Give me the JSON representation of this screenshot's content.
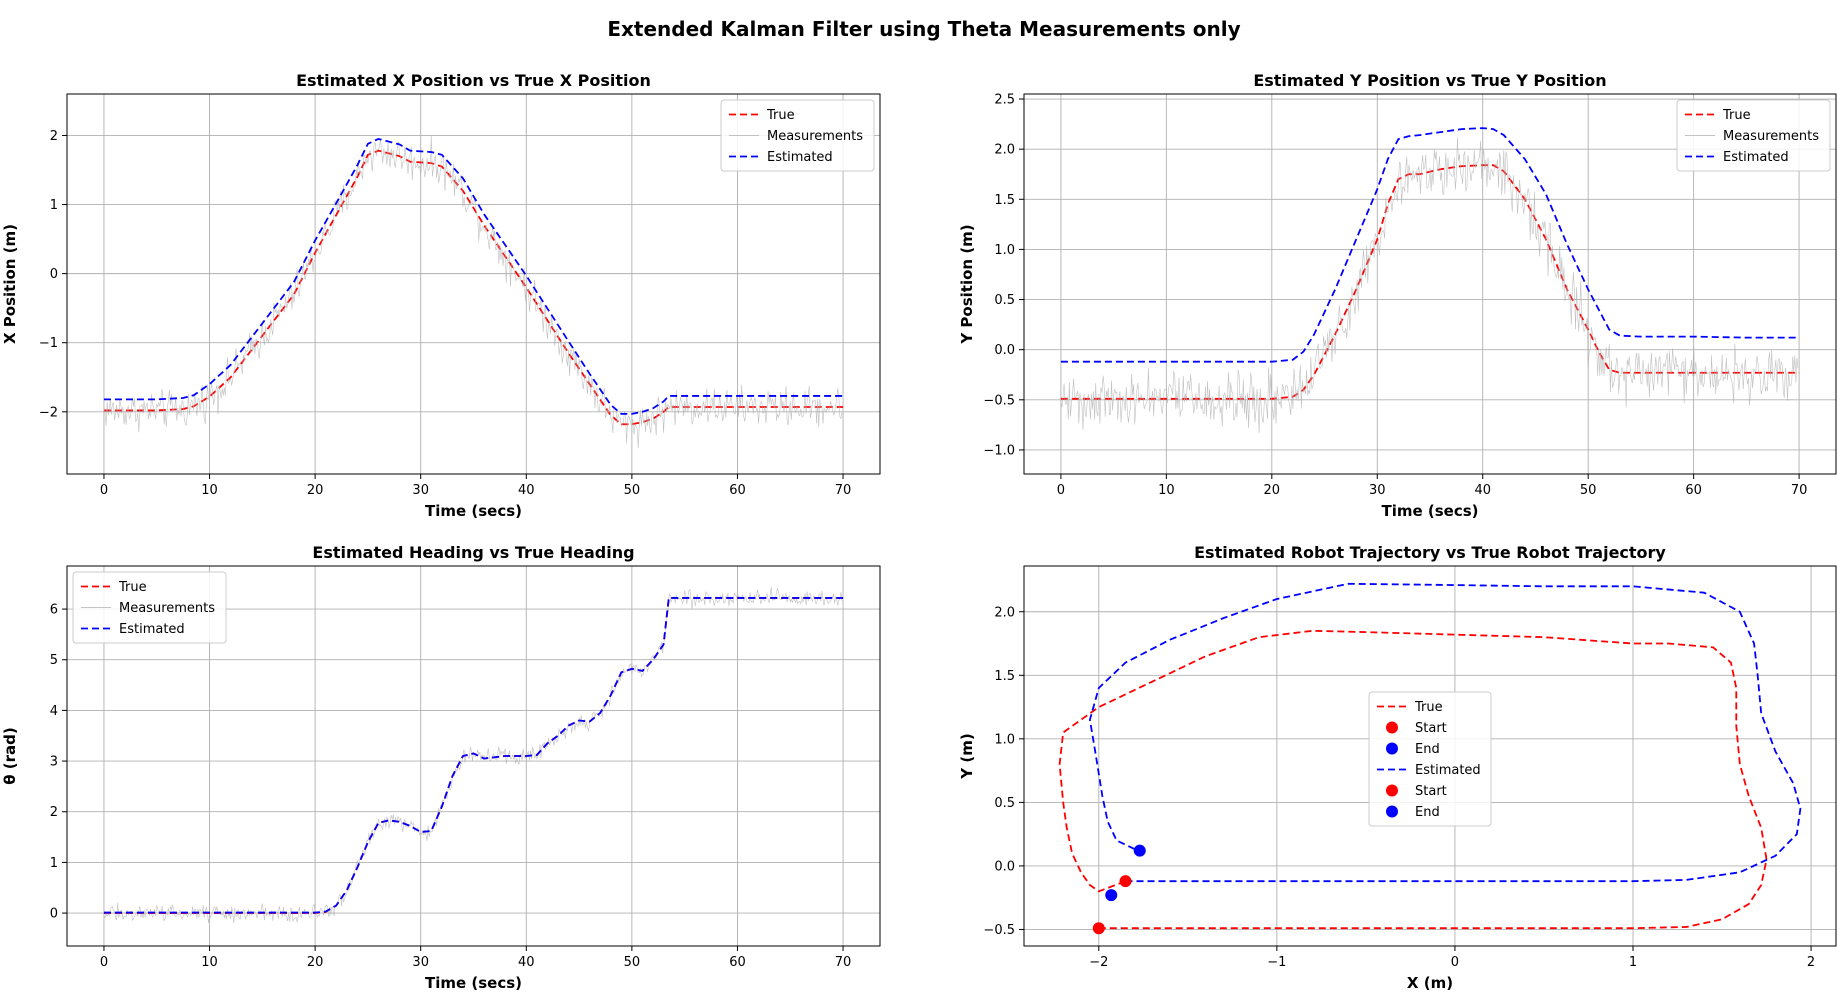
{
  "figure_title": "Extended Kalman Filter using Theta Measurements only",
  "colors": {
    "true": "#ff0000",
    "estimated": "#0000ff",
    "measurements": "#b0b0b0",
    "grid": "#b0b0b0"
  },
  "chart_data": [
    {
      "id": "x",
      "type": "line",
      "title": "Estimated X Position vs True X Position",
      "xlabel": "Time (secs)",
      "ylabel": "X Position (m)",
      "xlim": [
        -3.5,
        73.5
      ],
      "ylim": [
        -2.9,
        2.6
      ],
      "xticks": [
        0,
        10,
        20,
        30,
        40,
        50,
        60,
        70
      ],
      "yticks": [
        -2,
        -1,
        0,
        1,
        2
      ],
      "ytick_labels": [
        "−2",
        "−1",
        "0",
        "1",
        "2"
      ],
      "grid": true,
      "legend": {
        "position": "top-right",
        "labels": [
          "True",
          "Measurements",
          "Estimated"
        ]
      },
      "measurement_noise": 0.17,
      "series": [
        {
          "name": "True",
          "style": "dashed",
          "x": [
            0,
            5,
            7.5,
            8.5,
            10,
            12,
            15,
            18,
            20,
            22,
            24,
            25,
            26,
            28,
            29,
            31,
            32,
            34,
            36,
            40,
            44,
            46,
            48,
            49,
            50,
            51,
            52,
            53,
            53.5,
            56,
            60,
            65,
            70
          ],
          "y": [
            -1.98,
            -1.98,
            -1.96,
            -1.92,
            -1.78,
            -1.5,
            -0.9,
            -0.3,
            0.3,
            0.85,
            1.4,
            1.72,
            1.78,
            1.7,
            1.62,
            1.6,
            1.55,
            1.2,
            0.7,
            -0.2,
            -1.15,
            -1.6,
            -2.05,
            -2.18,
            -2.18,
            -2.15,
            -2.1,
            -2.0,
            -1.93,
            -1.93,
            -1.93,
            -1.93,
            -1.93
          ]
        },
        {
          "name": "Measurements",
          "style": "solid",
          "x": [
            0,
            5,
            7.5,
            8.5,
            10,
            12,
            15,
            18,
            20,
            22,
            24,
            25,
            26,
            28,
            29,
            31,
            32,
            34,
            36,
            40,
            44,
            46,
            48,
            49,
            50,
            51,
            52,
            53,
            53.5,
            56,
            60,
            65,
            70
          ],
          "y": [
            -1.98,
            -1.98,
            -1.96,
            -1.92,
            -1.78,
            -1.5,
            -0.9,
            -0.3,
            0.3,
            0.85,
            1.4,
            1.72,
            1.78,
            1.7,
            1.62,
            1.6,
            1.55,
            1.2,
            0.7,
            -0.2,
            -1.15,
            -1.6,
            -2.05,
            -2.18,
            -2.18,
            -2.15,
            -2.1,
            -2.0,
            -1.93,
            -1.93,
            -1.93,
            -1.93,
            -1.93
          ]
        },
        {
          "name": "Estimated",
          "style": "dashed",
          "x": [
            0,
            5,
            7.5,
            8.5,
            10,
            12,
            15,
            18,
            20,
            22,
            24,
            25,
            26,
            28,
            29,
            31,
            32,
            34,
            36,
            40,
            44,
            46,
            48,
            49,
            50,
            51,
            52,
            53,
            53.5,
            56,
            60,
            65,
            70
          ],
          "y": [
            -1.82,
            -1.82,
            -1.8,
            -1.76,
            -1.6,
            -1.32,
            -0.72,
            -0.12,
            0.48,
            1.02,
            1.57,
            1.88,
            1.95,
            1.87,
            1.78,
            1.76,
            1.72,
            1.38,
            0.86,
            -0.03,
            -0.98,
            -1.45,
            -1.9,
            -2.03,
            -2.03,
            -2.0,
            -1.95,
            -1.85,
            -1.77,
            -1.77,
            -1.77,
            -1.77,
            -1.77
          ]
        }
      ]
    },
    {
      "id": "y",
      "type": "line",
      "title": "Estimated Y Position vs True Y Position",
      "xlabel": "Time (secs)",
      "ylabel": "Y Position (m)",
      "xlim": [
        -3.5,
        73.5
      ],
      "ylim": [
        -1.24,
        2.55
      ],
      "xticks": [
        0,
        10,
        20,
        30,
        40,
        50,
        60,
        70
      ],
      "yticks": [
        -1.0,
        -0.5,
        0.0,
        0.5,
        1.0,
        1.5,
        2.0,
        2.5
      ],
      "ytick_labels": [
        "−1.0",
        "−0.5",
        "0.0",
        "0.5",
        "1.0",
        "1.5",
        "2.0",
        "2.5"
      ],
      "grid": true,
      "legend": {
        "position": "top-right",
        "labels": [
          "True",
          "Measurements",
          "Estimated"
        ]
      },
      "measurement_noise": 0.17,
      "series": [
        {
          "name": "True",
          "style": "dashed",
          "x": [
            0,
            10,
            20,
            22,
            23,
            24,
            26,
            28,
            30,
            31,
            32,
            33,
            34,
            36,
            38,
            40,
            41,
            42,
            44,
            46,
            48,
            50,
            51,
            52,
            53,
            55,
            60,
            65,
            70
          ],
          "y": [
            -0.49,
            -0.49,
            -0.49,
            -0.47,
            -0.4,
            -0.25,
            0.15,
            0.6,
            1.1,
            1.45,
            1.7,
            1.75,
            1.75,
            1.8,
            1.83,
            1.84,
            1.84,
            1.78,
            1.5,
            1.1,
            0.6,
            0.2,
            -0.02,
            -0.2,
            -0.23,
            -0.23,
            -0.23,
            -0.23,
            -0.23
          ]
        },
        {
          "name": "Measurements",
          "style": "solid",
          "x": [
            0,
            10,
            20,
            22,
            23,
            24,
            26,
            28,
            30,
            31,
            32,
            33,
            34,
            36,
            38,
            40,
            41,
            42,
            44,
            46,
            48,
            50,
            51,
            52,
            53,
            55,
            60,
            65,
            70
          ],
          "y": [
            -0.49,
            -0.49,
            -0.49,
            -0.47,
            -0.4,
            -0.25,
            0.15,
            0.6,
            1.1,
            1.45,
            1.7,
            1.75,
            1.75,
            1.8,
            1.83,
            1.84,
            1.84,
            1.78,
            1.5,
            1.1,
            0.6,
            0.2,
            -0.02,
            -0.2,
            -0.23,
            -0.23,
            -0.23,
            -0.23,
            -0.23
          ]
        },
        {
          "name": "Estimated",
          "style": "dashed",
          "x": [
            0,
            10,
            20,
            22,
            23,
            24,
            26,
            28,
            30,
            31,
            32,
            33,
            34,
            36,
            38,
            40,
            41,
            42,
            44,
            46,
            48,
            50,
            51,
            52,
            53,
            55,
            60,
            65,
            70
          ],
          "y": [
            -0.12,
            -0.12,
            -0.12,
            -0.1,
            -0.02,
            0.15,
            0.6,
            1.1,
            1.6,
            1.9,
            2.1,
            2.13,
            2.14,
            2.17,
            2.2,
            2.21,
            2.2,
            2.14,
            1.9,
            1.55,
            1.05,
            0.6,
            0.4,
            0.2,
            0.14,
            0.13,
            0.13,
            0.12,
            0.12
          ]
        }
      ]
    },
    {
      "id": "theta",
      "type": "line",
      "title": "Estimated Heading vs True Heading",
      "xlabel": "Time (secs)",
      "ylabel": "θ (rad)",
      "xlim": [
        -3.5,
        73.5
      ],
      "ylim": [
        -0.65,
        6.85
      ],
      "xticks": [
        0,
        10,
        20,
        30,
        40,
        50,
        60,
        70
      ],
      "yticks": [
        0,
        1,
        2,
        3,
        4,
        5,
        6
      ],
      "ytick_labels": [
        "0",
        "1",
        "2",
        "3",
        "4",
        "5",
        "6"
      ],
      "grid": true,
      "legend": {
        "position": "top-left",
        "labels": [
          "True",
          "Measurements",
          "Estimated"
        ]
      },
      "measurement_noise": 0.1,
      "series": [
        {
          "name": "True",
          "style": "dashed",
          "x": [
            0,
            10,
            20,
            21,
            22,
            23,
            24,
            25,
            26,
            27,
            28,
            29,
            30,
            31,
            32,
            33,
            34,
            35,
            36,
            38,
            40,
            41,
            42,
            43,
            44,
            45,
            46,
            47,
            48,
            49,
            50,
            51,
            52,
            53,
            53.5,
            55,
            60,
            65,
            70
          ],
          "y": [
            0,
            0,
            0,
            0.02,
            0.15,
            0.45,
            0.9,
            1.4,
            1.78,
            1.83,
            1.8,
            1.72,
            1.6,
            1.62,
            2.1,
            2.7,
            3.1,
            3.15,
            3.05,
            3.1,
            3.1,
            3.12,
            3.35,
            3.5,
            3.7,
            3.8,
            3.78,
            3.95,
            4.3,
            4.75,
            4.82,
            4.78,
            5.0,
            5.3,
            6.22,
            6.22,
            6.22,
            6.22,
            6.22
          ]
        },
        {
          "name": "Measurements",
          "style": "solid",
          "x": [
            0,
            10,
            20,
            21,
            22,
            23,
            24,
            25,
            26,
            27,
            28,
            29,
            30,
            31,
            32,
            33,
            34,
            35,
            36,
            38,
            40,
            41,
            42,
            43,
            44,
            45,
            46,
            47,
            48,
            49,
            50,
            51,
            52,
            53,
            53.5,
            55,
            60,
            65,
            70
          ],
          "y": [
            0,
            0,
            0,
            0.02,
            0.15,
            0.45,
            0.9,
            1.4,
            1.78,
            1.83,
            1.8,
            1.72,
            1.6,
            1.62,
            2.1,
            2.7,
            3.1,
            3.15,
            3.05,
            3.1,
            3.1,
            3.12,
            3.35,
            3.5,
            3.7,
            3.8,
            3.78,
            3.95,
            4.3,
            4.75,
            4.82,
            4.78,
            5.0,
            5.3,
            6.22,
            6.22,
            6.22,
            6.22,
            6.22
          ]
        },
        {
          "name": "Estimated",
          "style": "dashed",
          "x": [
            0,
            10,
            20,
            21,
            22,
            23,
            24,
            25,
            26,
            27,
            28,
            29,
            30,
            31,
            32,
            33,
            34,
            35,
            36,
            38,
            40,
            41,
            42,
            43,
            44,
            45,
            46,
            47,
            48,
            49,
            50,
            51,
            52,
            53,
            53.5,
            55,
            60,
            65,
            70
          ],
          "y": [
            0.01,
            0.01,
            0.01,
            0.03,
            0.15,
            0.45,
            0.9,
            1.4,
            1.78,
            1.83,
            1.8,
            1.72,
            1.6,
            1.62,
            2.1,
            2.7,
            3.1,
            3.15,
            3.05,
            3.1,
            3.1,
            3.12,
            3.35,
            3.5,
            3.7,
            3.8,
            3.78,
            3.95,
            4.3,
            4.75,
            4.82,
            4.78,
            5.0,
            5.3,
            6.22,
            6.22,
            6.22,
            6.22,
            6.22
          ]
        }
      ]
    },
    {
      "id": "traj",
      "type": "line",
      "title": "Estimated Robot Trajectory vs True Robot Trajectory",
      "xlabel": "X (m)",
      "ylabel": "Y (m)",
      "xlim": [
        -2.42,
        2.14
      ],
      "ylim": [
        -0.63,
        2.36
      ],
      "xticks": [
        -2,
        -1,
        0,
        1,
        2
      ],
      "xtick_labels": [
        "−2",
        "−1",
        "0",
        "1",
        "2"
      ],
      "yticks": [
        -0.5,
        0.0,
        0.5,
        1.0,
        1.5,
        2.0
      ],
      "ytick_labels": [
        "−0.5",
        "0.0",
        "0.5",
        "1.0",
        "1.5",
        "2.0"
      ],
      "grid": true,
      "legend": {
        "position": "center",
        "labels": [
          "True",
          "Start",
          "End",
          "Estimated",
          "Start",
          "End"
        ]
      },
      "series": [
        {
          "name": "True",
          "style": "dashed",
          "x": [
            -2.0,
            -1.0,
            0.0,
            1.0,
            1.3,
            1.5,
            1.65,
            1.72,
            1.75,
            1.72,
            1.65,
            1.6,
            1.58,
            1.58,
            1.55,
            1.45,
            1.2,
            1.0,
            0.5,
            0.0,
            -0.5,
            -0.8,
            -1.1,
            -1.4,
            -1.7,
            -2.0,
            -2.2,
            -2.22,
            -2.2,
            -2.18,
            -2.15,
            -2.1,
            -2.05,
            -2.0,
            -1.85
          ],
          "y": [
            -0.49,
            -0.49,
            -0.49,
            -0.49,
            -0.48,
            -0.42,
            -0.3,
            -0.15,
            0.05,
            0.3,
            0.55,
            0.8,
            1.1,
            1.4,
            1.6,
            1.72,
            1.75,
            1.75,
            1.8,
            1.82,
            1.84,
            1.85,
            1.8,
            1.65,
            1.45,
            1.25,
            1.05,
            0.8,
            0.5,
            0.3,
            0.1,
            -0.05,
            -0.15,
            -0.2,
            -0.12
          ]
        },
        {
          "name": "Estimated",
          "style": "dashed",
          "x": [
            -1.85,
            -1.0,
            0.0,
            1.0,
            1.3,
            1.6,
            1.8,
            1.92,
            1.94,
            1.9,
            1.8,
            1.72,
            1.7,
            1.68,
            1.6,
            1.4,
            1.0,
            0.5,
            0.0,
            -0.6,
            -1.0,
            -1.3,
            -1.6,
            -1.85,
            -2.0,
            -2.05,
            -2.02,
            -1.98,
            -1.95,
            -1.9,
            -1.78
          ],
          "y": [
            -0.12,
            -0.12,
            -0.12,
            -0.12,
            -0.11,
            -0.05,
            0.08,
            0.25,
            0.45,
            0.65,
            0.9,
            1.2,
            1.5,
            1.75,
            2.0,
            2.15,
            2.2,
            2.2,
            2.21,
            2.22,
            2.1,
            1.95,
            1.78,
            1.6,
            1.4,
            1.15,
            0.9,
            0.55,
            0.35,
            0.2,
            0.12
          ]
        }
      ],
      "markers": [
        {
          "name": "Start",
          "series": "True",
          "x": -2.0,
          "y": -0.49,
          "color": "#ff0000"
        },
        {
          "name": "End",
          "series": "True",
          "x": -1.93,
          "y": -0.23,
          "color": "#0000ff"
        },
        {
          "name": "Start",
          "series": "Estimated",
          "x": -1.85,
          "y": -0.12,
          "color": "#ff0000"
        },
        {
          "name": "End",
          "series": "Estimated",
          "x": -1.77,
          "y": 0.12,
          "color": "#0000ff"
        }
      ]
    }
  ]
}
